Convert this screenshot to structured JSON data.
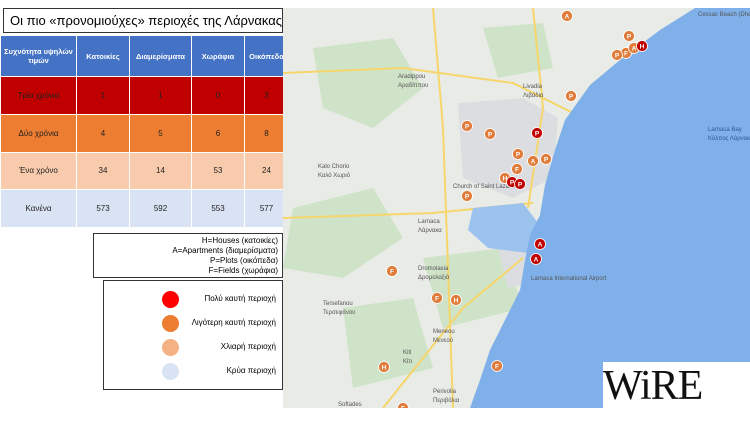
{
  "title": "Οι πιο «προνομιούχες» περιοχές της Λάρνακας",
  "table": {
    "header": [
      "Συχνότητα υψηλών τιμών",
      "Κατοικίες",
      "Διαμερίσματα",
      "Χωράφια",
      "Οικόπεδα"
    ],
    "rows": [
      {
        "label": "Τρία χρόνια",
        "color": "#c00000",
        "cells": [
          "1",
          "1",
          "0",
          "3"
        ]
      },
      {
        "label": "Δύο χρόνια",
        "color": "#ed7d31",
        "cells": [
          "4",
          "5",
          "6",
          "8"
        ]
      },
      {
        "label": "Ένα χρόνο",
        "color": "#f8cbad",
        "cells": [
          "34",
          "14",
          "53",
          "24"
        ]
      },
      {
        "label": "Κανένα",
        "color": "#dae3f3",
        "cells": [
          "573",
          "592",
          "553",
          "577"
        ]
      }
    ]
  },
  "abbreviations": [
    "H=Houses (κατοικίες)",
    "A=Apartments  (διαμερίσματα)",
    "P=Plots (οικόπεδα)",
    "F=Fields (χωράφια)"
  ],
  "legend": [
    {
      "label": "Πολύ καυτή περιοχή",
      "color": "#ff0000"
    },
    {
      "label": "Λιγότερη καυτή περιοχή",
      "color": "#ed7d31"
    },
    {
      "label": "Χλιαρή περιοχή",
      "color": "#f4b183"
    },
    {
      "label": "Κρύα περιοχή",
      "color": "#dae3f3"
    }
  ],
  "map": {
    "labels": [
      "Cessac Beach (Dhekelia Bay)",
      "Aradippou",
      "Αραδίππου",
      "Livadia",
      "Λιβάδια",
      "Larnaca Bay",
      "Κόλπος Λάρνακας",
      "Kalo Chorio",
      "Καλό Χωριό",
      "Church of Saint Lazarus",
      "Larnaca",
      "Λάρνακα",
      "Dromolaxia",
      "Δρομολαξιά",
      "Larnaca International Airport",
      "Tersefanou",
      "Τερσεφάνου",
      "Meneou",
      "Μενεού",
      "Kiti",
      "Κίτι",
      "Perivolia",
      "Περιβόλια",
      "Softades"
    ],
    "markers": [
      {
        "label": "A",
        "color": "#e07b39"
      },
      {
        "label": "P",
        "color": "#e07b39"
      },
      {
        "label": "F",
        "color": "#e07b39"
      },
      {
        "label": "P",
        "color": "#e07b39"
      },
      {
        "label": "A",
        "color": "#e07b39"
      },
      {
        "label": "H",
        "color": "#c00000"
      },
      {
        "label": "P",
        "color": "#e07b39"
      },
      {
        "label": "P",
        "color": "#e07b39"
      },
      {
        "label": "P",
        "color": "#e07b39"
      },
      {
        "label": "P",
        "color": "#c00000"
      },
      {
        "label": "P",
        "color": "#e07b39"
      },
      {
        "label": "P",
        "color": "#e07b39"
      },
      {
        "label": "F",
        "color": "#e07b39"
      },
      {
        "label": "A",
        "color": "#e07b39"
      },
      {
        "label": "H",
        "color": "#e07b39"
      },
      {
        "label": "P",
        "color": "#c00000"
      },
      {
        "label": "P",
        "color": "#c00000"
      },
      {
        "label": "P",
        "color": "#e07b39"
      },
      {
        "label": "A",
        "color": "#c00000"
      },
      {
        "label": "A",
        "color": "#c00000"
      },
      {
        "label": "F",
        "color": "#e07b39"
      },
      {
        "label": "F",
        "color": "#e07b39"
      },
      {
        "label": "H",
        "color": "#e07b39"
      },
      {
        "label": "H",
        "color": "#e07b39"
      },
      {
        "label": "F",
        "color": "#e07b39"
      },
      {
        "label": "F",
        "color": "#e07b39"
      }
    ]
  },
  "logo": "WiRE"
}
